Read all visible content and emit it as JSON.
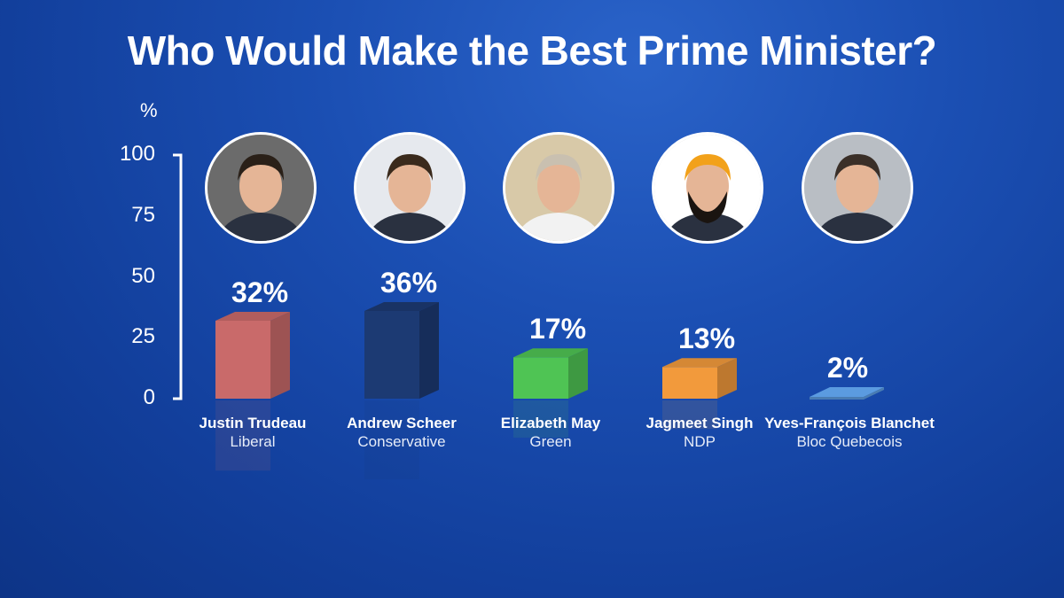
{
  "title": "Who Would Make the Best Prime Minister?",
  "chart_data": {
    "type": "bar",
    "title": "Who Would Make the Best Prime Minister?",
    "ylabel": "%",
    "ylim": [
      0,
      100
    ],
    "yticks": [
      "100",
      "75",
      "50",
      "25",
      "0"
    ],
    "categories": [
      "Justin Trudeau",
      "Andrew Scheer",
      "Elizabeth May",
      "Jagmeet Singh",
      "Yves-François Blanchet"
    ],
    "parties": [
      "Liberal",
      "Conservative",
      "Green",
      "NDP",
      "Bloc Quebecois"
    ],
    "values": [
      32,
      36,
      17,
      13,
      2
    ],
    "value_labels": [
      "32%",
      "36%",
      "17%",
      "13%",
      "2%"
    ],
    "colors": [
      "#c96a6a",
      "#1c3a73",
      "#4fc454",
      "#f29a3c",
      "#5b9be0"
    ],
    "grid": false
  }
}
